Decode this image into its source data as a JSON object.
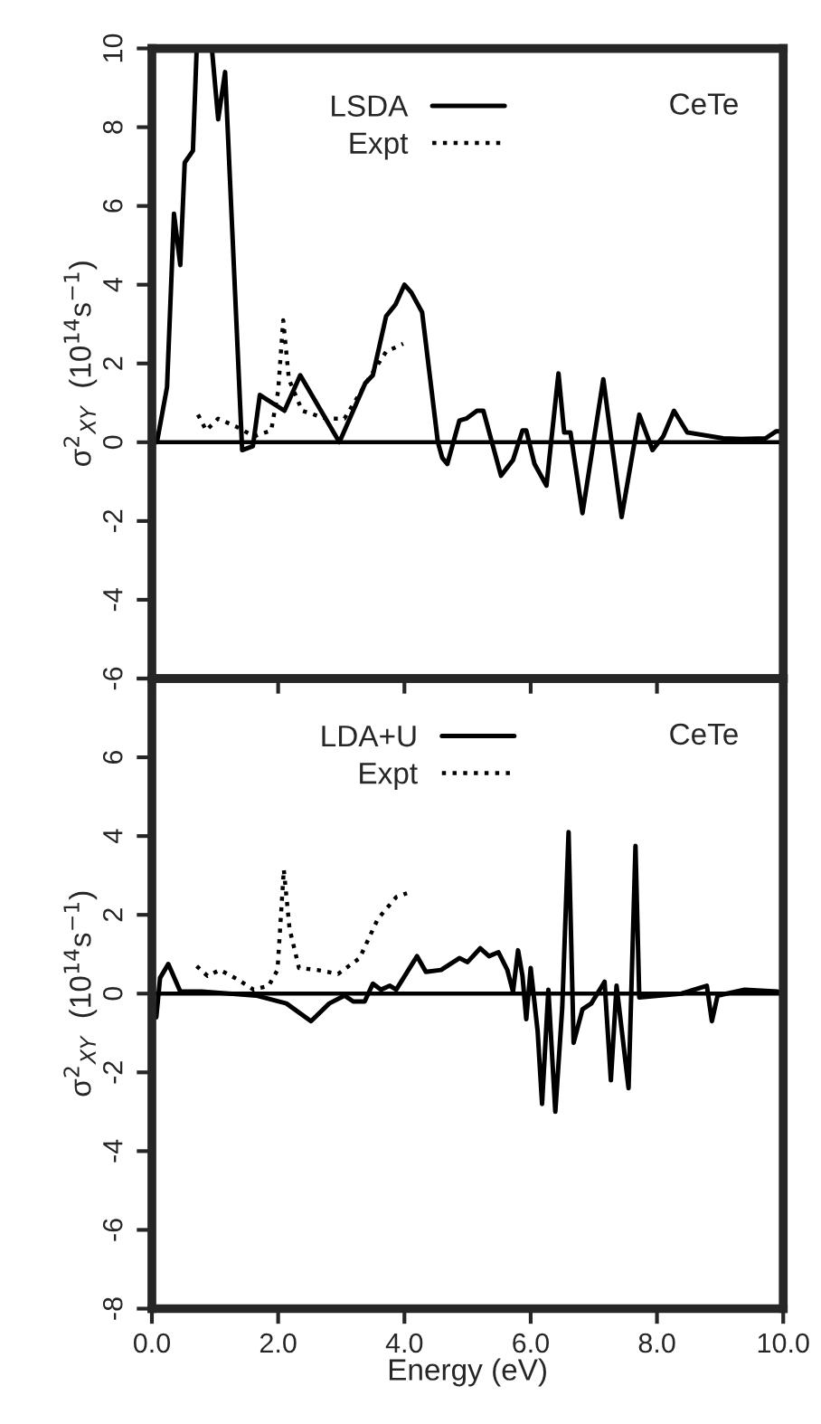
{
  "chart_data": [
    {
      "type": "line",
      "ylabel": "σ$^{2}$$_{XY}$  (10$^{14}$s$^{−1}$)",
      "annotations": [
        "CeTe"
      ],
      "xlim": [
        0,
        10
      ],
      "xticks": [
        0,
        2,
        4,
        6,
        8,
        10
      ],
      "ylim": [
        -6,
        10
      ],
      "yticks": [
        -6,
        -4,
        -2,
        0,
        2,
        4,
        6,
        8,
        10
      ],
      "tick_labels": "y",
      "grid": false,
      "legend": "top",
      "marker": "none",
      "ref_lines": [
        {
          "axis": "y",
          "value": 0,
          "color": "#000000",
          "line_style": "solid"
        }
      ],
      "series": [
        {
          "name": "LSDA",
          "color": "#000000",
          "line_style": "solid",
          "x": [
            0.08,
            0.24,
            0.35,
            0.45,
            0.52,
            0.65,
            0.71,
            0.95,
            1.05,
            1.16,
            1.43,
            1.6,
            1.71,
            2.1,
            2.35,
            2.97,
            3.38,
            3.5,
            3.71,
            3.86,
            4.0,
            4.11,
            4.28,
            4.53,
            4.6,
            4.68,
            4.87,
            4.98,
            5.15,
            5.25,
            5.53,
            5.72,
            5.87,
            5.93,
            6.06,
            6.25,
            6.44,
            6.53,
            6.63,
            6.82,
            7.15,
            7.44,
            7.72,
            7.93,
            8.1,
            8.27,
            8.48,
            9.05,
            9.34,
            9.72,
            9.89,
            10.0
          ],
          "values": [
            0,
            1.4,
            5.8,
            4.5,
            7.1,
            7.4,
            10,
            10,
            8.2,
            9.4,
            -0.2,
            -0.1,
            1.2,
            0.8,
            1.7,
            0,
            1.5,
            1.7,
            3.2,
            3.5,
            4.0,
            3.8,
            3.3,
            0,
            -0.4,
            -0.55,
            0.55,
            0.6,
            0.8,
            0.8,
            -0.85,
            -0.45,
            0.3,
            0.3,
            -0.55,
            -1.1,
            1.75,
            0.25,
            0.25,
            -1.8,
            1.6,
            -1.9,
            0.7,
            -0.2,
            0.15,
            0.8,
            0.25,
            0.1,
            0.08,
            0.1,
            0.28,
            0.28
          ]
        },
        {
          "name": "Expt",
          "color": "#000000",
          "line_style": "dotted",
          "x": [
            0.73,
            0.86,
            1.05,
            1.33,
            1.62,
            1.89,
            2.0,
            2.08,
            2.17,
            2.38,
            2.76,
            3.05,
            3.43,
            3.71,
            3.98
          ],
          "values": [
            0.7,
            0.3,
            0.6,
            0.4,
            0.15,
            0.3,
            1.3,
            3.1,
            1.6,
            0.8,
            0.6,
            0.6,
            1.6,
            2.3,
            2.5
          ]
        }
      ]
    },
    {
      "type": "line",
      "xlabel": "Energy (eV)",
      "ylabel": "σ$^{2}$$_{XY}$  (10$^{14}$s$^{−1}$)",
      "annotations": [
        "CeTe"
      ],
      "xlim": [
        0,
        10
      ],
      "xticks": [
        {
          "value": 0,
          "label": "0.0"
        },
        {
          "value": 2,
          "label": "2.0"
        },
        {
          "value": 4,
          "label": "4.0"
        },
        {
          "value": 6,
          "label": "6.0"
        },
        {
          "value": 8,
          "label": "8.0"
        },
        {
          "value": 10,
          "label": "10.0"
        }
      ],
      "ylim": [
        -8,
        8
      ],
      "yticks": [
        -8,
        -6,
        -4,
        -2,
        0,
        2,
        4,
        6,
        {
          "value": 8,
          "label": null
        }
      ],
      "grid": false,
      "legend": "top",
      "marker": "none",
      "ref_lines": [
        {
          "axis": "y",
          "value": 0,
          "color": "#000000",
          "line_style": "solid"
        }
      ],
      "series": [
        {
          "name": "LDA+U",
          "color": "#000000",
          "line_style": "solid",
          "x": [
            0.07,
            0.13,
            0.26,
            0.45,
            0.79,
            1.65,
            2.13,
            2.52,
            2.81,
            3.05,
            3.19,
            3.37,
            3.5,
            3.63,
            3.77,
            3.87,
            4.2,
            4.34,
            4.58,
            4.87,
            5.0,
            5.2,
            5.34,
            5.49,
            5.63,
            5.72,
            5.8,
            5.87,
            5.93,
            6.0,
            6.11,
            6.18,
            6.28,
            6.39,
            6.5,
            6.6,
            6.68,
            6.82,
            6.96,
            7.17,
            7.27,
            7.36,
            7.55,
            7.66,
            7.72,
            8.39,
            8.79,
            8.87,
            8.96,
            9.39,
            9.91,
            10.0
          ],
          "values": [
            -0.6,
            0.4,
            0.75,
            0.05,
            0.05,
            -0.05,
            -0.25,
            -0.7,
            -0.25,
            -0.05,
            -0.2,
            -0.2,
            0.25,
            0.1,
            0.2,
            0.1,
            0.95,
            0.55,
            0.6,
            0.9,
            0.8,
            1.15,
            0.95,
            1.05,
            0.6,
            0.05,
            1.1,
            0.45,
            -0.65,
            0.65,
            -0.95,
            -2.8,
            0.1,
            -3.0,
            -0.35,
            4.1,
            -1.25,
            -0.4,
            -0.25,
            0.3,
            -2.2,
            0.2,
            -2.4,
            3.75,
            -0.1,
            0.0,
            0.2,
            -0.7,
            -0.05,
            0.1,
            0.05,
            0.0
          ]
        },
        {
          "name": "Expt",
          "color": "#000000",
          "line_style": "dotted",
          "x": [
            0.71,
            0.88,
            1.08,
            1.37,
            1.61,
            1.85,
            1.99,
            2.09,
            2.18,
            2.33,
            2.62,
            2.95,
            3.29,
            3.58,
            3.87,
            4.04
          ],
          "values": [
            0.7,
            0.45,
            0.6,
            0.35,
            0.1,
            0.2,
            0.6,
            3.15,
            1.65,
            0.65,
            0.6,
            0.5,
            0.9,
            1.9,
            2.45,
            2.55
          ]
        }
      ]
    }
  ]
}
